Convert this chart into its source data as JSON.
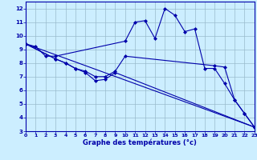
{
  "background_color": "#cceeff",
  "grid_color": "#99bbcc",
  "line_color": "#0000aa",
  "xlabel": "Graphe des températures (°c)",
  "ylim": [
    3,
    12.5
  ],
  "xlim": [
    0,
    23
  ],
  "yticks": [
    3,
    4,
    5,
    6,
    7,
    8,
    9,
    10,
    11,
    12
  ],
  "xticks": [
    0,
    1,
    2,
    3,
    4,
    5,
    6,
    7,
    8,
    9,
    10,
    11,
    12,
    13,
    14,
    15,
    16,
    17,
    18,
    19,
    20,
    21,
    22,
    23
  ],
  "lines": [
    {
      "x": [
        0,
        1,
        2,
        3,
        10,
        11,
        12,
        13,
        14,
        15,
        16,
        17,
        18,
        19,
        20,
        21,
        22,
        23
      ],
      "y": [
        9.4,
        9.2,
        8.5,
        8.5,
        9.6,
        11.0,
        11.1,
        9.8,
        12.0,
        11.5,
        10.3,
        10.5,
        7.6,
        7.6,
        6.5,
        5.3,
        4.3,
        3.3
      ]
    },
    {
      "x": [
        0,
        3,
        4,
        5,
        6,
        7,
        8,
        9,
        10,
        19,
        20,
        21,
        22,
        23
      ],
      "y": [
        9.4,
        8.3,
        8.0,
        7.6,
        7.4,
        7.0,
        7.0,
        7.4,
        8.5,
        7.8,
        7.7,
        5.3,
        4.3,
        3.3
      ]
    },
    {
      "x": [
        0,
        3,
        4,
        5,
        6,
        7,
        8,
        9,
        23
      ],
      "y": [
        9.4,
        8.3,
        8.0,
        7.6,
        7.3,
        6.7,
        6.8,
        7.3,
        3.3
      ]
    },
    {
      "x": [
        0,
        23
      ],
      "y": [
        9.4,
        3.3
      ]
    }
  ]
}
